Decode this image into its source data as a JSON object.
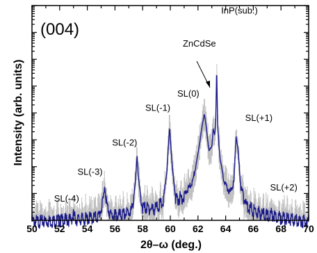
{
  "chart_data": {
    "type": "line",
    "panel_label": "(004)",
    "xlabel": "2θ–ω (deg.)",
    "ylabel": "Intensity (arb. units)",
    "xlim": [
      50,
      70
    ],
    "y_scale": "log",
    "xticks": [
      "50",
      "52",
      "54",
      "56",
      "58",
      "60",
      "62",
      "64",
      "66",
      "68",
      "70"
    ],
    "series": [
      {
        "color": "#1a1a8a",
        "points": [
          [
            50.0,
            0.12
          ],
          [
            51.0,
            0.12
          ],
          [
            52.0,
            0.13
          ],
          [
            52.8,
            0.14
          ],
          [
            53.0,
            0.2
          ],
          [
            53.2,
            0.14
          ],
          [
            54.0,
            0.15
          ],
          [
            54.8,
            0.18
          ],
          [
            55.1,
            0.5
          ],
          [
            55.25,
            2.2
          ],
          [
            55.4,
            0.5
          ],
          [
            55.7,
            0.2
          ],
          [
            56.5,
            0.2
          ],
          [
            57.2,
            0.3
          ],
          [
            57.45,
            2.0
          ],
          [
            57.6,
            25
          ],
          [
            57.75,
            2.0
          ],
          [
            58.0,
            0.4
          ],
          [
            58.8,
            0.35
          ],
          [
            59.5,
            0.6
          ],
          [
            59.75,
            8
          ],
          [
            59.95,
            300
          ],
          [
            60.15,
            8
          ],
          [
            60.4,
            0.8
          ],
          [
            61.0,
            1.0
          ],
          [
            61.6,
            3
          ],
          [
            61.9,
            15
          ],
          [
            62.2,
            150
          ],
          [
            62.35,
            500
          ],
          [
            62.45,
            1000
          ],
          [
            62.6,
            300
          ],
          [
            62.8,
            40
          ],
          [
            63.0,
            60
          ],
          [
            63.1,
            250
          ],
          [
            63.2,
            150
          ],
          [
            63.28,
            500
          ],
          [
            63.35,
            50000
          ],
          [
            63.42,
            300
          ],
          [
            63.6,
            20
          ],
          [
            63.9,
            3
          ],
          [
            64.3,
            1.2
          ],
          [
            64.6,
            3
          ],
          [
            64.75,
            150
          ],
          [
            64.9,
            40
          ],
          [
            65.1,
            2
          ],
          [
            65.5,
            0.5
          ],
          [
            66.0,
            0.3
          ],
          [
            67.0,
            0.2
          ],
          [
            67.4,
            0.22
          ],
          [
            68.0,
            0.16
          ],
          [
            69.0,
            0.13
          ],
          [
            70.0,
            0.12
          ]
        ]
      }
    ],
    "annotations": [
      {
        "text": "SL(-4)",
        "x": 52.5,
        "y": 0.5
      },
      {
        "text": "SL(-3)",
        "x": 54.2,
        "y": 5
      },
      {
        "text": "SL(-2)",
        "x": 56.7,
        "y": 60
      },
      {
        "text": "SL(-1)",
        "x": 59.1,
        "y": 1200
      },
      {
        "text": "SL(0)",
        "x": 61.3,
        "y": 4000
      },
      {
        "text": "ZnCdSe",
        "x": 62.1,
        "y": 300000
      },
      {
        "text": "InP(sub.)",
        "x": 65.0,
        "y": 5000000
      },
      {
        "text": "SL(+1)",
        "x": 66.4,
        "y": 500
      },
      {
        "text": "SL(+2)",
        "x": 68.2,
        "y": 1.3
      }
    ]
  },
  "colors": {
    "trace": "#1a1a8a",
    "background_trace": "#c0c0c0"
  }
}
